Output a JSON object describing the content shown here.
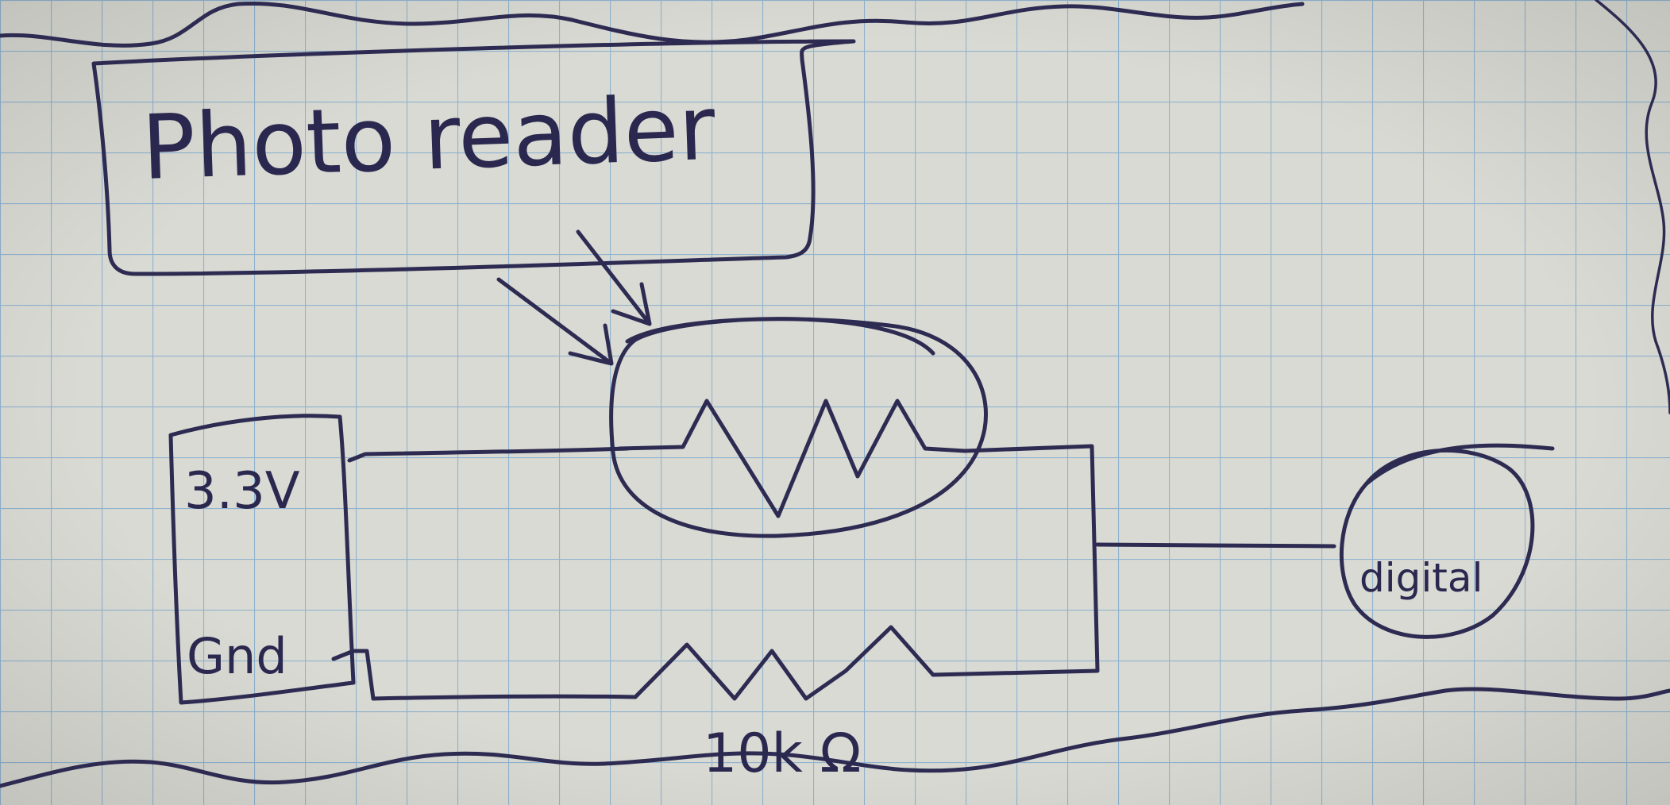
{
  "labels": {
    "title": "Photo reader",
    "supply": "3.3V",
    "ground": "Gnd",
    "output": "digital",
    "resistor_value": "10k Ω"
  },
  "colors": {
    "paper": "#d9dad3",
    "grid": "#8fb3cf",
    "ink": "#2e2b52"
  }
}
